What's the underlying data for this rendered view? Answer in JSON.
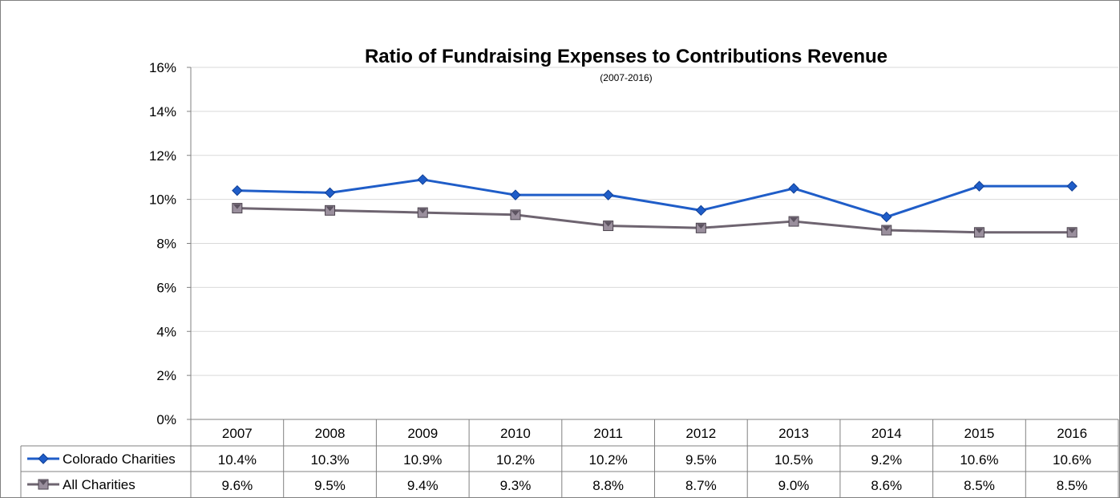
{
  "chart_data": {
    "type": "line",
    "title": "Ratio of Fundraising Expenses to Contributions Revenue",
    "subtitle": "(2007-2016)",
    "categories": [
      "2007",
      "2008",
      "2009",
      "2010",
      "2011",
      "2012",
      "2013",
      "2014",
      "2015",
      "2016"
    ],
    "ylim": [
      0,
      16
    ],
    "ytick_values": [
      0,
      2,
      4,
      6,
      8,
      10,
      12,
      14,
      16
    ],
    "ytick_labels": [
      "0%",
      "2%",
      "4%",
      "6%",
      "8%",
      "10%",
      "12%",
      "14%",
      "16%"
    ],
    "grid": true,
    "legend": "data-table",
    "series": [
      {
        "name": "Colorado Charities",
        "color": "#1F5DC8",
        "marker": "diamond",
        "values": [
          10.4,
          10.3,
          10.9,
          10.2,
          10.2,
          9.5,
          10.5,
          9.2,
          10.6,
          10.6
        ],
        "labels": [
          "10.4%",
          "10.3%",
          "10.9%",
          "10.2%",
          "10.2%",
          "9.5%",
          "10.5%",
          "9.2%",
          "10.6%",
          "10.6%"
        ]
      },
      {
        "name": "All Charities",
        "color": "#6E6470",
        "marker": "square",
        "values": [
          9.6,
          9.5,
          9.4,
          9.3,
          8.8,
          8.7,
          9.0,
          8.6,
          8.5,
          8.5
        ],
        "labels": [
          "9.6%",
          "9.5%",
          "9.4%",
          "9.3%",
          "8.8%",
          "8.7%",
          "9.0%",
          "8.6%",
          "8.5%",
          "8.5%"
        ]
      }
    ]
  }
}
